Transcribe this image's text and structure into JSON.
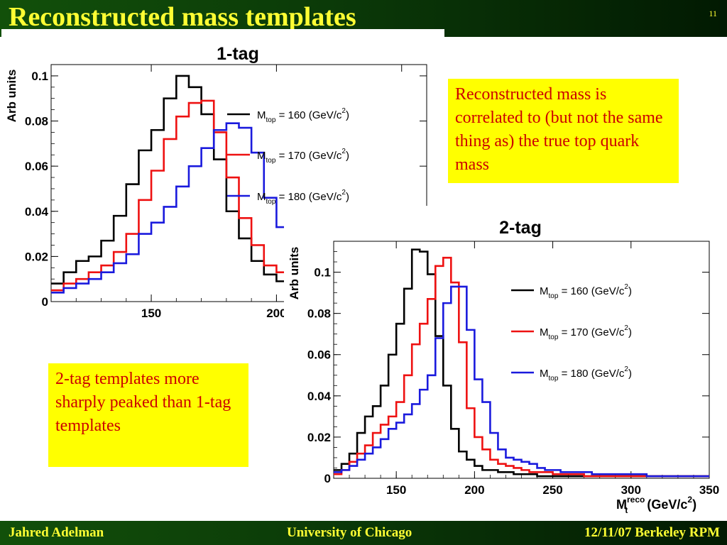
{
  "slide": {
    "title": "Reconstructed mass templates",
    "number": "11",
    "footer": {
      "left": "Jahred Adelman",
      "center": "University of Chicago",
      "right": "12/11/07 Berkeley RPM"
    },
    "callouts": [
      "Reconstructed mass is correlated to (but not the same thing as) the true top quark mass",
      "2-tag templates more sharply peaked than 1-tag templates"
    ]
  },
  "colors": {
    "header_bg": "#0b3a08",
    "title_text": "#ffff33",
    "callout_bg": "#ffff00",
    "callout_text": "#cc0000",
    "series_160": "#000000",
    "series_170": "#ee1111",
    "series_180": "#1a1add"
  },
  "chart_data": [
    {
      "type": "line",
      "style": "step-histogram",
      "title": "1-tag",
      "xlabel": "",
      "ylabel": "Arb units",
      "xlim": [
        110,
        260
      ],
      "ylim": [
        0,
        0.105
      ],
      "xticks": [
        150,
        200,
        250
      ],
      "yticks": [
        0,
        0.02,
        0.04,
        0.06,
        0.08,
        0.1
      ],
      "ytick_labels": [
        "0",
        "0.02",
        "0.04",
        "0.06",
        "0.08",
        "0.1"
      ],
      "grid": false,
      "legend": "right",
      "bin_width": 5,
      "x_start": 110,
      "series": [
        {
          "name": "M_top = 160 (GeV/c^2)",
          "color": "#000000",
          "values": [
            0.008,
            0.013,
            0.018,
            0.02,
            0.027,
            0.038,
            0.052,
            0.067,
            0.076,
            0.09,
            0.1,
            0.095,
            0.083,
            0.063,
            0.04,
            0.028,
            0.018,
            0.012,
            0.009,
            0.007,
            0.006,
            0.005,
            0.004,
            0.003,
            0.003,
            0.002,
            0.002,
            0.002,
            0.001,
            0.001
          ]
        },
        {
          "name": "M_top = 170 (GeV/c^2)",
          "color": "#ee1111",
          "values": [
            0.005,
            0.008,
            0.01,
            0.013,
            0.016,
            0.022,
            0.03,
            0.045,
            0.058,
            0.072,
            0.082,
            0.088,
            0.089,
            0.075,
            0.055,
            0.037,
            0.025,
            0.016,
            0.013,
            0.011,
            0.009,
            0.007,
            0.006,
            0.006,
            0.005,
            0.004,
            0.003,
            0.003,
            0.002,
            0.001
          ]
        },
        {
          "name": "M_top = 180 (GeV/c^2)",
          "color": "#1a1add",
          "values": [
            0.004,
            0.006,
            0.008,
            0.01,
            0.013,
            0.017,
            0.021,
            0.03,
            0.035,
            0.042,
            0.051,
            0.06,
            0.068,
            0.076,
            0.079,
            0.077,
            0.066,
            0.046,
            0.033,
            0.023,
            0.016,
            0.013,
            0.011,
            0.009,
            0.007,
            0.006,
            0.005,
            0.004,
            0.003,
            0.002
          ]
        }
      ],
      "legend_labels": [
        {
          "main": "M",
          "sub": "top",
          "rest": " = 160 (GeV/c",
          "sup": "2",
          "close": ")"
        },
        {
          "main": "M",
          "sub": "top",
          "rest": " = 170 (GeV/c",
          "sup": "2",
          "close": ")"
        },
        {
          "main": "M",
          "sub": "top",
          "rest": " = 180 (GeV/c",
          "sup": "2",
          "close": ")"
        }
      ]
    },
    {
      "type": "line",
      "style": "step-histogram",
      "title": "2-tag",
      "xlabel": "M_t^reco (GeV/c^2)",
      "xlabel_parts": {
        "main": "M",
        "sup": "reco",
        "sub": "t",
        "rest": " (GeV/c",
        "sup2": "2",
        "close": ")"
      },
      "ylabel": "Arb units",
      "xlim": [
        110,
        350
      ],
      "ylim": [
        0,
        0.115
      ],
      "xticks": [
        150,
        200,
        250,
        300,
        350
      ],
      "yticks": [
        0,
        0.02,
        0.04,
        0.06,
        0.08,
        0.1
      ],
      "ytick_labels": [
        "0",
        "0.02",
        "0.04",
        "0.06",
        "0.08",
        "0.1"
      ],
      "grid": false,
      "legend": "right",
      "bin_width": 5,
      "x_start": 110,
      "series": [
        {
          "name": "M_top = 160 (GeV/c^2)",
          "color": "#000000",
          "values": [
            0.004,
            0.007,
            0.012,
            0.022,
            0.03,
            0.035,
            0.045,
            0.06,
            0.075,
            0.092,
            0.111,
            0.11,
            0.099,
            0.069,
            0.045,
            0.024,
            0.013,
            0.009,
            0.006,
            0.004,
            0.004,
            0.003,
            0.003,
            0.002,
            0.002,
            0.002,
            0.001,
            0.001,
            0.001,
            0.001,
            0.001,
            0.001,
            0.001,
            0.001,
            0.001,
            0.001,
            0.001,
            0.001,
            0.001,
            0.001,
            0.001,
            0.001,
            0.001,
            0.001,
            0.001,
            0.001,
            0.001,
            0.001
          ]
        },
        {
          "name": "M_top = 170 (GeV/c^2)",
          "color": "#ee1111",
          "values": [
            0.002,
            0.004,
            0.008,
            0.012,
            0.016,
            0.022,
            0.026,
            0.03,
            0.037,
            0.05,
            0.065,
            0.075,
            0.087,
            0.103,
            0.107,
            0.095,
            0.066,
            0.034,
            0.02,
            0.014,
            0.009,
            0.007,
            0.006,
            0.005,
            0.004,
            0.003,
            0.003,
            0.003,
            0.002,
            0.002,
            0.002,
            0.002,
            0.001,
            0.001,
            0.001,
            0.001,
            0.001,
            0.001,
            0.001,
            0.001,
            0.001,
            0.001,
            0.001,
            0.001,
            0.001,
            0.001,
            0.001,
            0.001
          ]
        },
        {
          "name": "M_top = 180 (GeV/c^2)",
          "color": "#1a1add",
          "values": [
            0.003,
            0.004,
            0.006,
            0.009,
            0.012,
            0.015,
            0.019,
            0.024,
            0.027,
            0.031,
            0.036,
            0.043,
            0.05,
            0.068,
            0.085,
            0.093,
            0.093,
            0.072,
            0.048,
            0.037,
            0.022,
            0.014,
            0.01,
            0.009,
            0.008,
            0.007,
            0.005,
            0.004,
            0.004,
            0.003,
            0.003,
            0.003,
            0.003,
            0.002,
            0.002,
            0.002,
            0.002,
            0.002,
            0.002,
            0.002,
            0.001,
            0.001,
            0.001,
            0.001,
            0.001,
            0.001,
            0.001,
            0.001
          ]
        }
      ],
      "legend_labels": [
        {
          "main": "M",
          "sub": "top",
          "rest": " = 160 (GeV/c",
          "sup": "2",
          "close": ")"
        },
        {
          "main": "M",
          "sub": "top",
          "rest": " = 170 (GeV/c",
          "sup": "2",
          "close": ")"
        },
        {
          "main": "M",
          "sub": "top",
          "rest": " = 180 (GeV/c",
          "sup": "2",
          "close": ")"
        }
      ]
    }
  ]
}
